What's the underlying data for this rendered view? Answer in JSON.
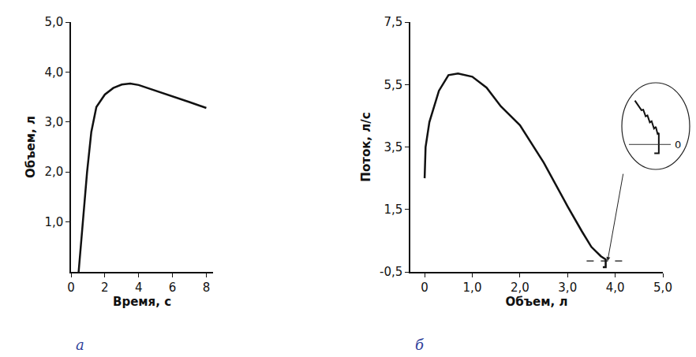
{
  "chart_data": [
    {
      "type": "line",
      "panel": "а",
      "x_label": "Время, с",
      "y_label": "Объем, л",
      "x": [
        0.45,
        0.6,
        0.75,
        0.95,
        1.2,
        1.5,
        2.0,
        2.5,
        3.0,
        3.5,
        4.0,
        5.0,
        6.0,
        7.0,
        8.0
      ],
      "values": [
        0.0,
        0.6,
        1.3,
        2.0,
        2.8,
        3.3,
        3.55,
        3.68,
        3.75,
        3.77,
        3.74,
        3.63,
        3.52,
        3.4,
        3.28
      ],
      "color": "#111111",
      "xlim": [
        0,
        8.4
      ],
      "xticks": [
        0,
        2,
        4,
        6,
        8
      ],
      "ylim": [
        0,
        5
      ],
      "yticks": [
        {
          "value": 1,
          "label": "1,0"
        },
        {
          "value": 2,
          "label": "2,0"
        },
        {
          "value": 3,
          "label": "3,0"
        },
        {
          "value": 4,
          "label": "4,0"
        },
        {
          "value": 5,
          "label": "5,0"
        }
      ],
      "grid": false
    },
    {
      "type": "line",
      "panel": "б",
      "x_label": "Объем, л",
      "y_label": "Поток, л/с",
      "x": [
        0.0,
        0.02,
        0.1,
        0.3,
        0.5,
        0.7,
        1.0,
        1.3,
        1.6,
        1.8,
        2.0,
        2.5,
        3.0,
        3.3,
        3.5,
        3.7,
        3.8,
        3.8,
        3.74
      ],
      "values": [
        2.5,
        3.5,
        4.3,
        5.3,
        5.8,
        5.85,
        5.75,
        5.4,
        4.8,
        4.5,
        4.2,
        3.0,
        1.6,
        0.8,
        0.3,
        0.0,
        -0.1,
        -0.35,
        -0.35
      ],
      "color": "#111111",
      "reference_line": {
        "x": [
          3.4,
          4.2
        ],
        "y": -0.15,
        "line_style": "dash"
      },
      "xlim": [
        -0.3,
        5.0
      ],
      "xticks": [
        0,
        {
          "value": 1,
          "label": "1,0"
        },
        {
          "value": 2,
          "label": "2,0"
        },
        {
          "value": 3,
          "label": "3,0"
        },
        {
          "value": 4,
          "label": "4,0"
        },
        {
          "value": 5,
          "label": "5,0"
        }
      ],
      "ylim": [
        -0.5,
        7.5
      ],
      "yticks": [
        {
          "value": -0.5,
          "label": "-0,5"
        },
        {
          "value": 1.5,
          "label": "1,5"
        },
        {
          "value": 3.5,
          "label": "3,5"
        },
        {
          "value": 5.5,
          "label": "5,5"
        },
        {
          "value": 7.5,
          "label": "7,5"
        }
      ],
      "grid": false,
      "inset": {
        "tick_labels": false,
        "x": [
          0,
          0.8,
          1.4,
          2.2,
          2.8,
          3.6,
          4.2,
          5.0,
          5.6,
          6.4,
          7.0,
          7.6,
          8.0,
          8.0,
          6.5
        ],
        "values": [
          10,
          9.2,
          8.6,
          7.8,
          7.9,
          6.4,
          6.6,
          5.0,
          5.3,
          3.6,
          4.0,
          2.4,
          2.6,
          -2,
          -2
        ],
        "zero_line": {
          "y": 0,
          "label": "0"
        },
        "xlim": [
          -2,
          12
        ],
        "ylim": [
          -3,
          11
        ]
      }
    }
  ]
}
